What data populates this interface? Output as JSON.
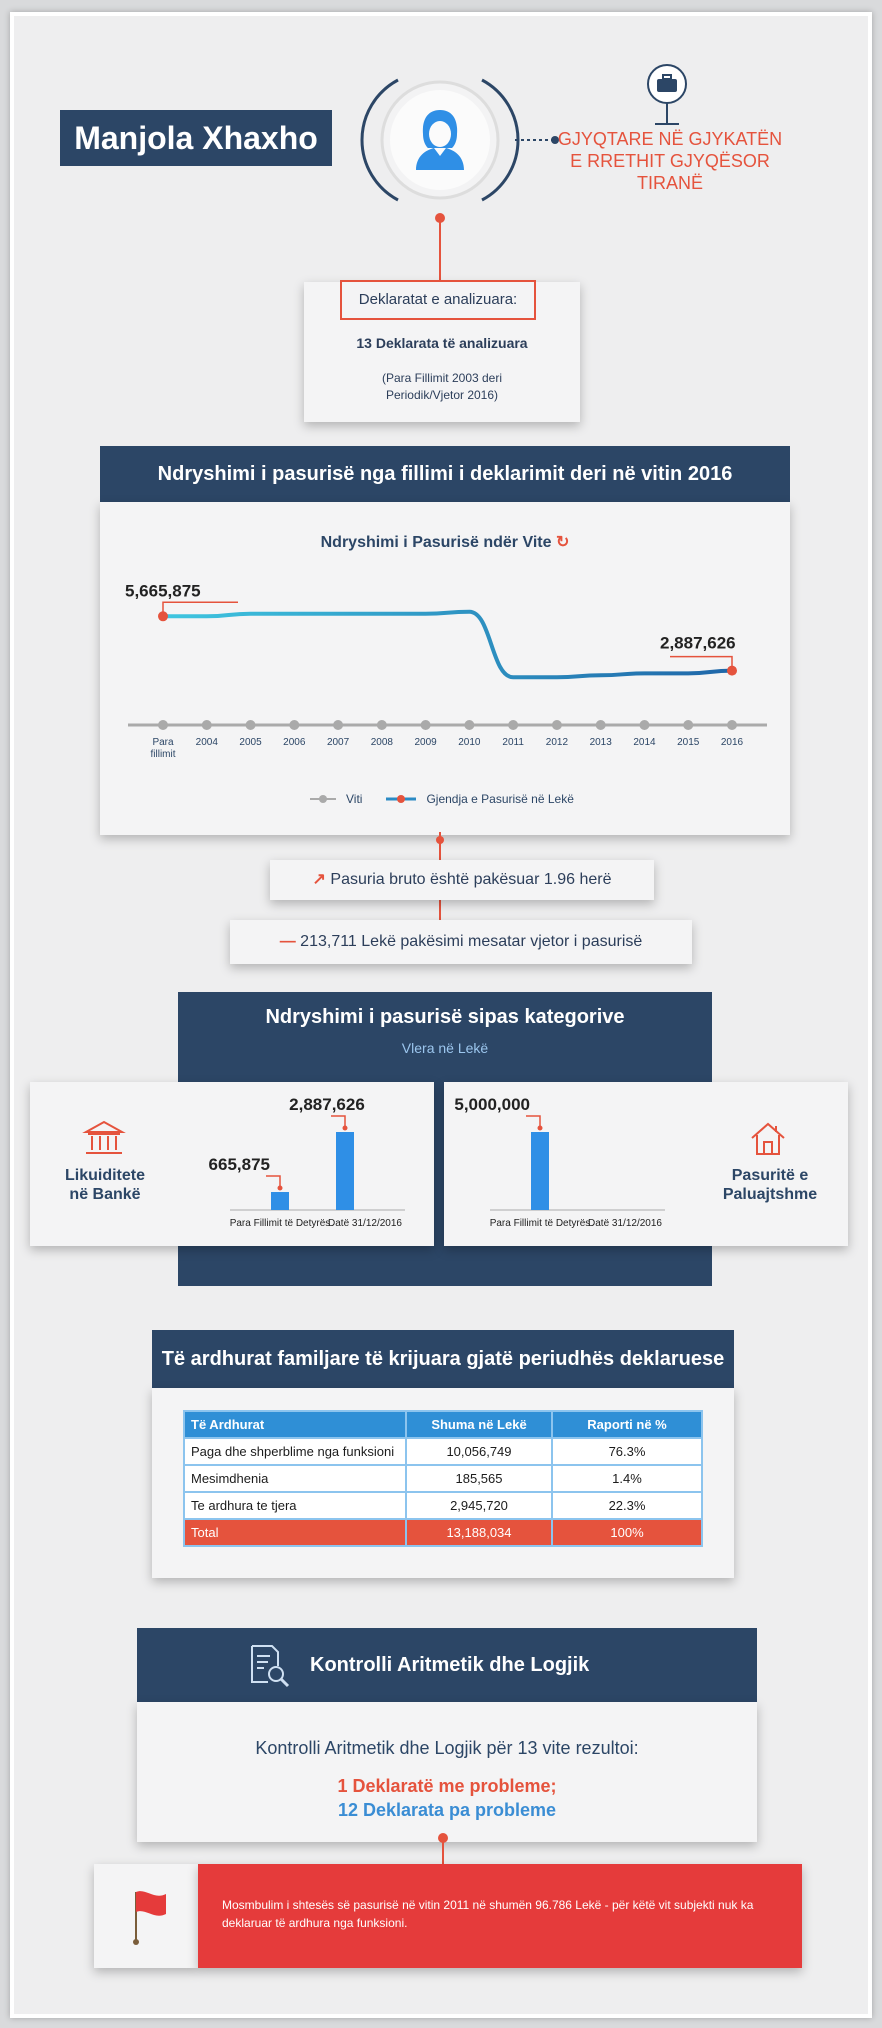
{
  "header": {
    "name": "Manjola Xhaxho",
    "role_line1": "GJYQTARE NË GJYKATËN",
    "role_line2": "E RRETHIT GJYQËSOR TIRANË"
  },
  "declarations": {
    "label": "Deklaratat e analizuara:",
    "count": "13 Deklarata të analizuara",
    "period_line1": "(Para Fillimit 2003 deri",
    "period_line2": "Periodik/Vjetor 2016)"
  },
  "wealth_change": {
    "banner": "Ndryshimi i pasurisë nga fillimi i deklarimit deri në vitin 2016",
    "chart_title": "Ndryshimi i Pasurisë ndër Vite",
    "legend_year": "Viti",
    "legend_series": "Gjendja e Pasurisë në Lekë"
  },
  "chart_data": {
    "type": "line",
    "title": "Ndryshimi i Pasurisë ndër Vite",
    "xlabel": "",
    "ylabel": "",
    "categories": [
      "Para fillimit",
      "2004",
      "2005",
      "2006",
      "2007",
      "2008",
      "2009",
      "2010",
      "2011",
      "2012",
      "2013",
      "2014",
      "2015",
      "2016"
    ],
    "series": [
      {
        "name": "Gjendja e Pasurisë në Lekë",
        "values": [
          5665875,
          5665875,
          5800000,
          5800000,
          5800000,
          5800000,
          5800000,
          5900000,
          2550000,
          2550000,
          2650000,
          2750000,
          2750000,
          2887626
        ]
      }
    ],
    "data_labels": [
      {
        "category": "Para fillimit",
        "label": "5,665,875"
      },
      {
        "category": "2016",
        "label": "2,887,626"
      }
    ],
    "ylim": [
      0,
      7000000
    ],
    "grid": false,
    "legend": "bottom"
  },
  "stats": {
    "decrease_ratio": "Pasuria bruto është pakësuar 1.96 herë",
    "annual_decrease": "213,711 Lekë pakësimi mesatar vjetor i pasurisë"
  },
  "categories_section": {
    "title": "Ndryshimi i pasurisë sipas kategorive",
    "subtitle": "Vlera në Lekë",
    "bank": {
      "label_line1": "Likuiditete",
      "label_line2": "në Bankë",
      "before_label": "Para Fillimit të Detyrës",
      "after_label": "Datë 31/12/2016",
      "before_value": "665,875",
      "after_value": "2,887,626",
      "before_num": 665875,
      "after_num": 2887626
    },
    "property": {
      "label_line1": "Pasuritë e",
      "label_line2": "Paluajtshme",
      "before_label": "Para Fillimit të Detyrës",
      "after_label": "Datë 31/12/2016",
      "before_value": "5,000,000",
      "before_num": 5000000,
      "after_num": 0
    }
  },
  "income": {
    "title": "Të ardhurat familjare të krijuara gjatë periudhës deklaruese",
    "headers": [
      "Të Ardhurat",
      "Shuma në Lekë",
      "Raporti në %"
    ],
    "rows": [
      [
        "Paga dhe shperblime nga funksioni",
        "10,056,749",
        "76.3%"
      ],
      [
        "Mesimdhenia",
        "185,565",
        "1.4%"
      ],
      [
        "Te ardhura te tjera",
        "2,945,720",
        "22.3%"
      ]
    ],
    "total": [
      "Total",
      "13,188,034",
      "100%"
    ]
  },
  "control": {
    "title": "Kontrolli Aritmetik dhe Logjik",
    "result_intro": "Kontrolli Aritmetik dhe Logjik për 13 vite rezultoi:",
    "with_problems": "1 Deklaratë me probleme;",
    "without_problems": "12 Deklarata pa probleme",
    "note": "Mosmbulim i shtesës së pasurisë në vitin 2011 në shumën 96.786 Lekë - për këtë vit subjekti nuk ka deklaruar të ardhura nga funksioni."
  },
  "colors": {
    "navy": "#2c4666",
    "accent_red": "#e5533d",
    "line_blue": "#2b8ac4",
    "bar_blue": "#2f8fe6",
    "ok_blue": "#3a8dd4"
  }
}
